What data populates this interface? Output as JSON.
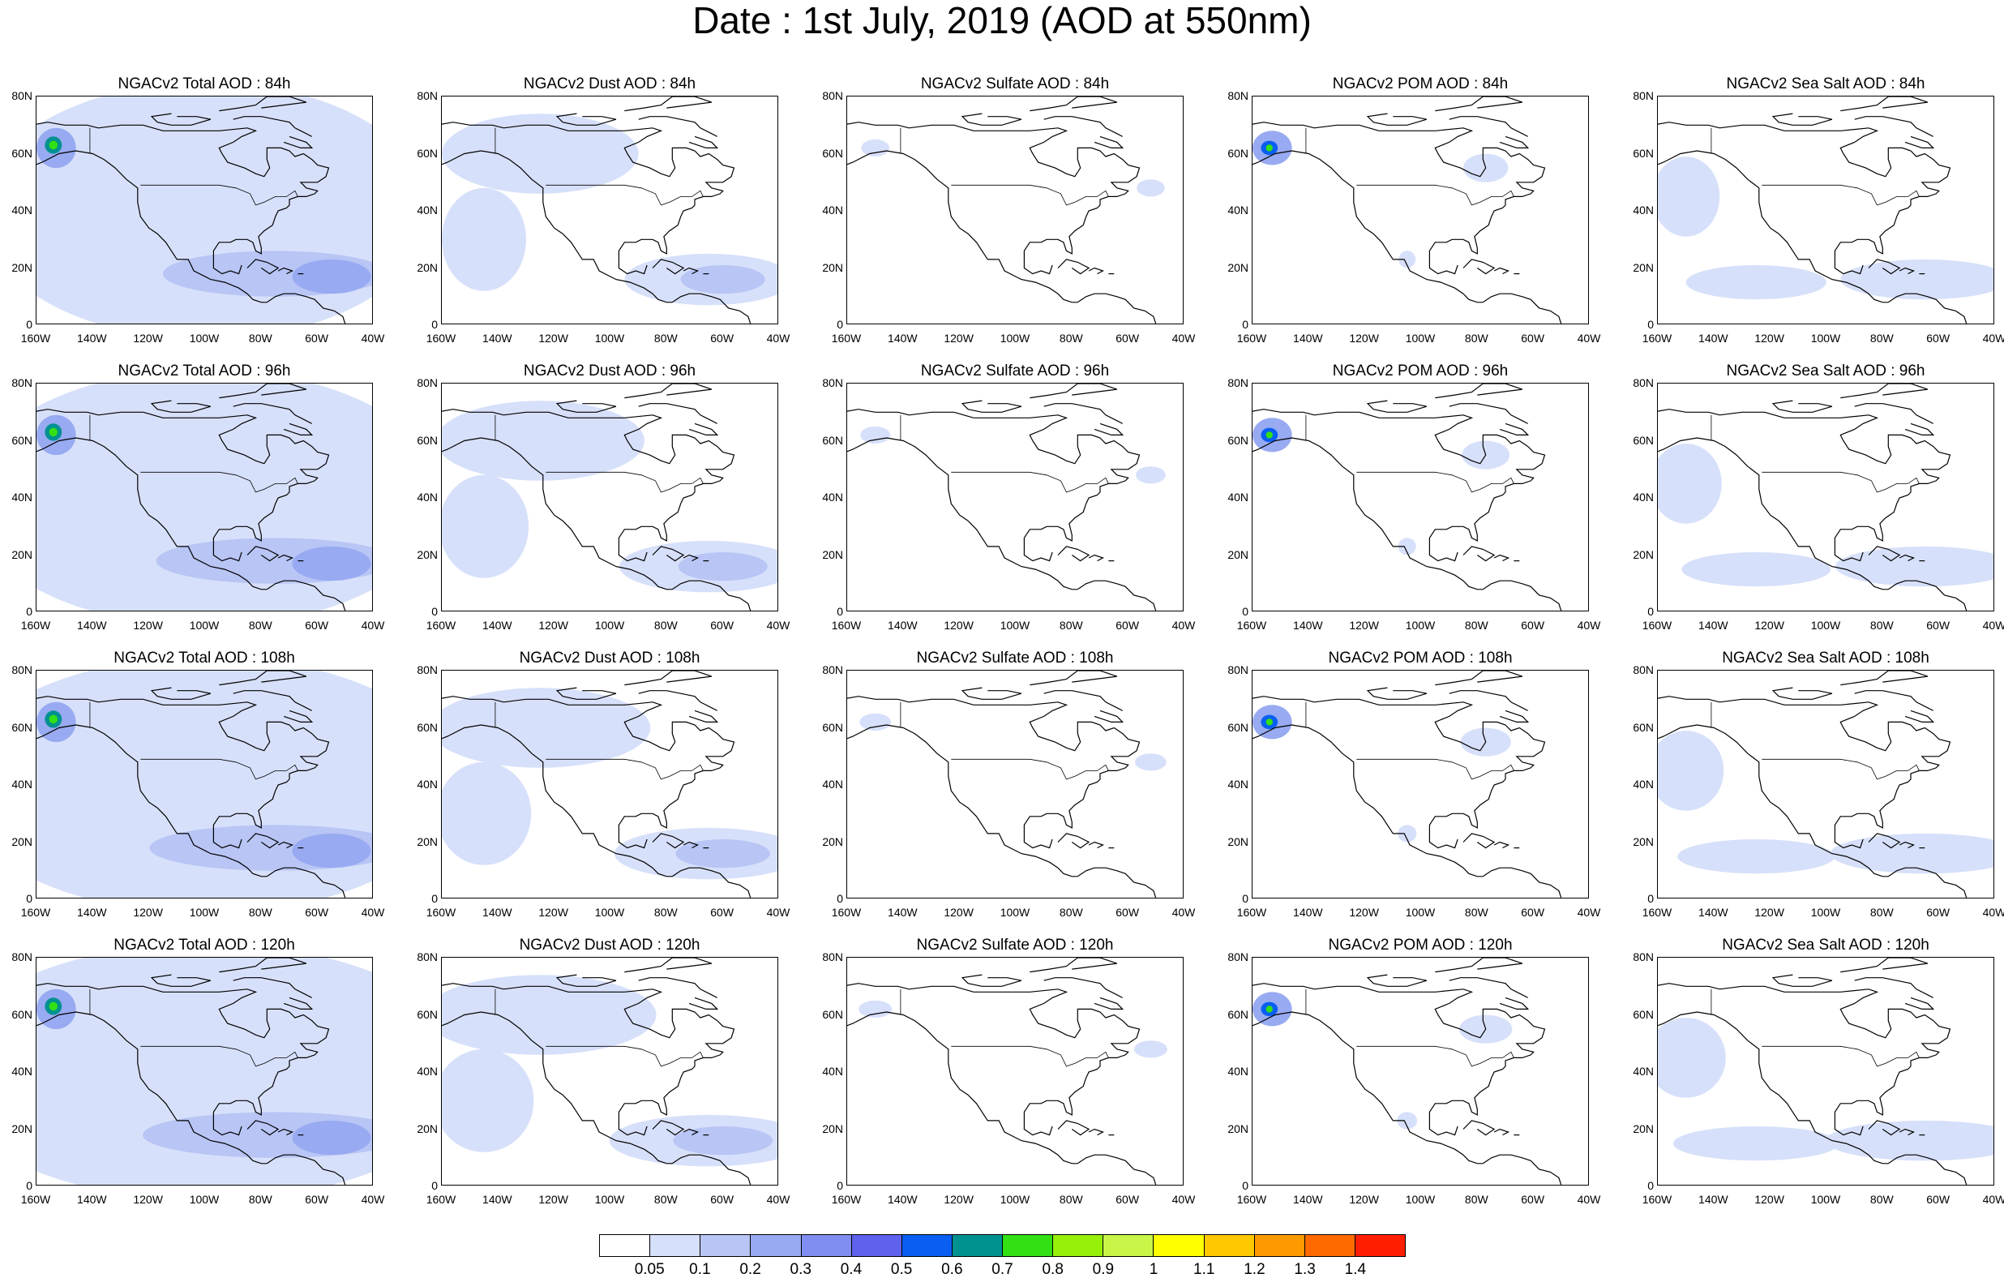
{
  "title": "Date : 1st July, 2019 (AOD at 550nm)",
  "panels": [
    [
      "NGACv2 Total AOD : 84h",
      "NGACv2 Dust AOD : 84h",
      "NGACv2 Sulfate AOD : 84h",
      "NGACv2 POM AOD : 84h",
      "NGACv2 Sea Salt AOD : 84h"
    ],
    [
      "NGACv2 Total AOD : 96h",
      "NGACv2 Dust AOD : 96h",
      "NGACv2 Sulfate AOD : 96h",
      "NGACv2 POM AOD : 96h",
      "NGACv2 Sea Salt AOD : 96h"
    ],
    [
      "NGACv2 Total AOD : 108h",
      "NGACv2 Dust AOD : 108h",
      "NGACv2 Sulfate AOD : 108h",
      "NGACv2 POM AOD : 108h",
      "NGACv2 Sea Salt AOD : 108h"
    ],
    [
      "NGACv2 Total AOD : 120h",
      "NGACv2 Dust AOD : 120h",
      "NGACv2 Sulfate AOD : 120h",
      "NGACv2 POM AOD : 120h",
      "NGACv2 Sea Salt  AOD : 120h"
    ]
  ],
  "map_fields": [
    "total",
    "dust",
    "sulfate",
    "pom",
    "seasalt"
  ],
  "forecast_hours": [
    84,
    96,
    108,
    120
  ],
  "lon_ticks": [
    "160W",
    "140W",
    "120W",
    "100W",
    "80W",
    "60W",
    "40W"
  ],
  "lat_ticks": [
    "80N",
    "60N",
    "40N",
    "20N",
    "0"
  ],
  "lon_range": [
    -160,
    -40
  ],
  "lat_range": [
    0,
    80
  ],
  "colorbar": {
    "labels": [
      "0.05",
      "0.1",
      "0.2",
      "0.3",
      "0.4",
      "0.5",
      "0.6",
      "0.7",
      "0.8",
      "0.9",
      "1",
      "1.1",
      "1.2",
      "1.3",
      "1.4"
    ],
    "colors": [
      "#ffffff",
      "#d7e0fa",
      "#b8c5f5",
      "#98aaf1",
      "#7f8ef0",
      "#5f62ec",
      "#0a5ff2",
      "#009191",
      "#32e014",
      "#96f00a",
      "#c8f548",
      "#ffff00",
      "#ffc800",
      "#ff9900",
      "#ff6a00",
      "#ff1e00"
    ]
  },
  "chart_data": {
    "type": "heatmap",
    "title": "Date : 1st July, 2019 (AOD at 550nm)",
    "variable": "AOD at 550nm",
    "date": "1st July, 2019",
    "model": "NGACv2",
    "fields": [
      "Total AOD",
      "Dust AOD",
      "Sulfate AOD",
      "POM AOD",
      "Sea Salt AOD"
    ],
    "forecast_hours": [
      "84h",
      "96h",
      "108h",
      "120h"
    ],
    "x_range": [
      -160,
      -40
    ],
    "y_range": [
      0,
      80
    ],
    "levels": [
      0.05,
      0.1,
      0.2,
      0.3,
      0.4,
      0.5,
      0.6,
      0.7,
      0.8,
      0.9,
      1,
      1.1,
      1.2,
      1.3,
      1.4
    ],
    "colors": [
      "#ffffff",
      "#d7e0fa",
      "#b8c5f5",
      "#98aaf1",
      "#7f8ef0",
      "#5f62ec",
      "#0a5ff2",
      "#009191",
      "#32e014",
      "#96f00a",
      "#c8f548",
      "#ffff00",
      "#ffc800",
      "#ff9900",
      "#ff6a00",
      "#ff1e00"
    ],
    "blobs": {
      "total": [
        {
          "lon": -100,
          "lat": 40,
          "rx": 80,
          "ry": 45,
          "level": 1
        },
        {
          "lon": -75,
          "lat": 18,
          "rx": 40,
          "ry": 8,
          "level": 2
        },
        {
          "lon": -55,
          "lat": 17,
          "rx": 14,
          "ry": 6,
          "level": 3
        },
        {
          "lon": -153,
          "lat": 62,
          "rx": 7,
          "ry": 7,
          "level": 3
        },
        {
          "lon": -154,
          "lat": 63,
          "rx": 3,
          "ry": 3,
          "level": 7
        },
        {
          "lon": -154,
          "lat": 63,
          "rx": 1.5,
          "ry": 1.5,
          "level": 8
        }
      ],
      "dust": [
        {
          "lon": -125,
          "lat": 60,
          "rx": 35,
          "ry": 14,
          "level": 1
        },
        {
          "lon": -145,
          "lat": 30,
          "rx": 15,
          "ry": 18,
          "level": 1
        },
        {
          "lon": -65,
          "lat": 16,
          "rx": 30,
          "ry": 9,
          "level": 1
        },
        {
          "lon": -60,
          "lat": 16,
          "rx": 15,
          "ry": 5,
          "level": 2
        }
      ],
      "sulfate": [
        {
          "lon": -150,
          "lat": 62,
          "rx": 5,
          "ry": 3,
          "level": 1
        },
        {
          "lon": -52,
          "lat": 48,
          "rx": 5,
          "ry": 3,
          "level": 1
        }
      ],
      "pom": [
        {
          "lon": -153,
          "lat": 62,
          "rx": 7,
          "ry": 6,
          "level": 3
        },
        {
          "lon": -154,
          "lat": 62,
          "rx": 3,
          "ry": 2.5,
          "level": 6
        },
        {
          "lon": -154,
          "lat": 62,
          "rx": 1.2,
          "ry": 1.2,
          "level": 8
        },
        {
          "lon": -77,
          "lat": 55,
          "rx": 8,
          "ry": 5,
          "level": 1
        },
        {
          "lon": -105,
          "lat": 23,
          "rx": 3,
          "ry": 3,
          "level": 1
        }
      ],
      "seasalt": [
        {
          "lon": -150,
          "lat": 45,
          "rx": 12,
          "ry": 14,
          "level": 1
        },
        {
          "lon": -65,
          "lat": 16,
          "rx": 30,
          "ry": 7,
          "level": 1
        },
        {
          "lon": -125,
          "lat": 15,
          "rx": 25,
          "ry": 6,
          "level": 1
        }
      ]
    }
  }
}
